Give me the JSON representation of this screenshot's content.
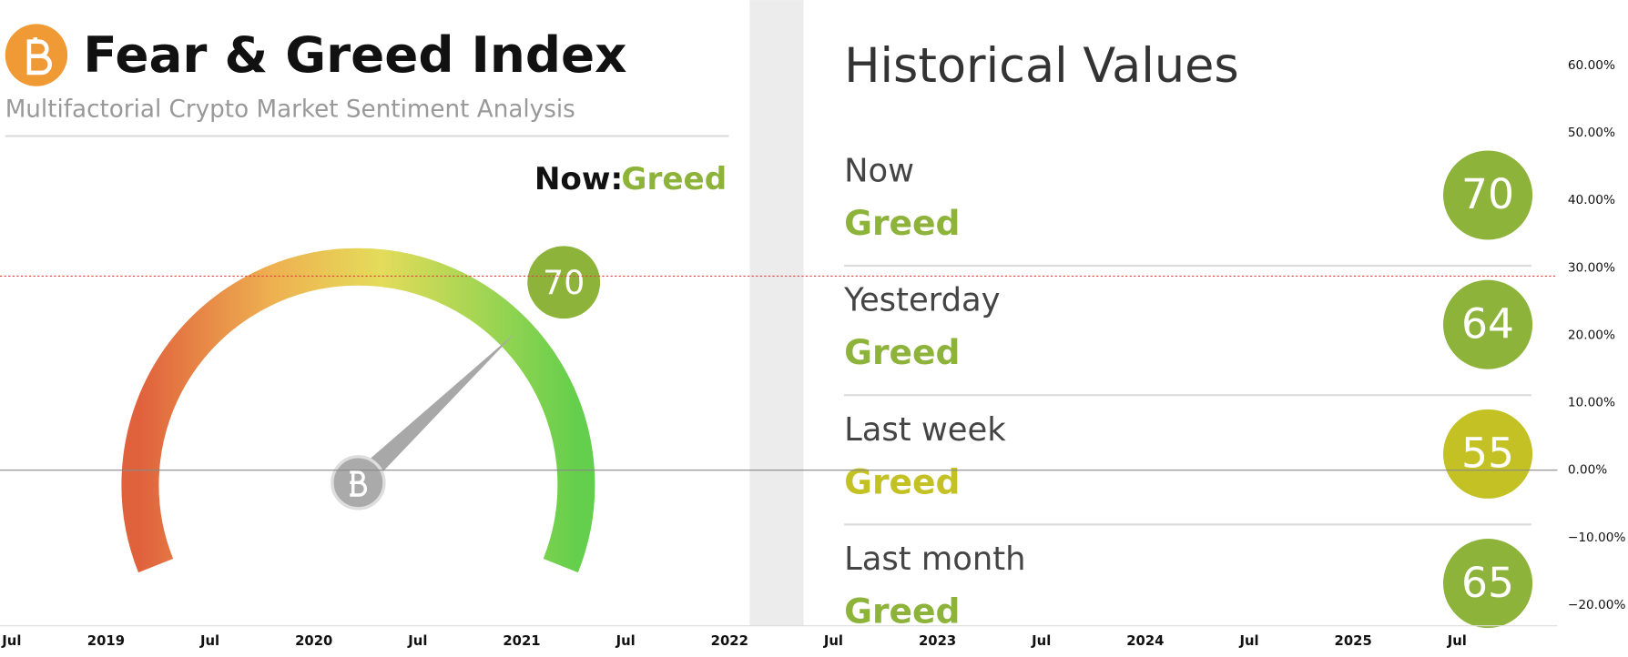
{
  "left_panel": {
    "title": "Fear & Greed Index",
    "subtitle": "Multifactorial Crypto Market Sentiment Analysis",
    "now_label": "Now:",
    "now_value": "Greed",
    "gauge_value": 70,
    "color": "#8db33a"
  },
  "right_panel": {
    "title": "Historical Values",
    "rows": [
      {
        "label": "Now",
        "status": "Greed",
        "value": 70,
        "color": "#8db33a"
      },
      {
        "label": "Yesterday",
        "status": "Greed",
        "value": 64,
        "color": "#8db33a"
      },
      {
        "label": "Last week",
        "status": "Greed",
        "value": 55,
        "color": "#c4c124"
      },
      {
        "label": "Last month",
        "status": "Greed",
        "value": 65,
        "color": "#8db33a"
      }
    ]
  },
  "price_axis": {
    "ticks": [
      "60.00%",
      "50.00%",
      "40.00%",
      "30.00%",
      "20.00%",
      "10.00%",
      "0.00%",
      "−10.00%",
      "−20.00%"
    ]
  },
  "time_axis": {
    "ticks": [
      "Jul",
      "2019",
      "Jul",
      "2020",
      "Jul",
      "2021",
      "Jul",
      "2022",
      "Jul",
      "2023",
      "Jul",
      "2024",
      "Jul",
      "2025",
      "Jul"
    ]
  }
}
